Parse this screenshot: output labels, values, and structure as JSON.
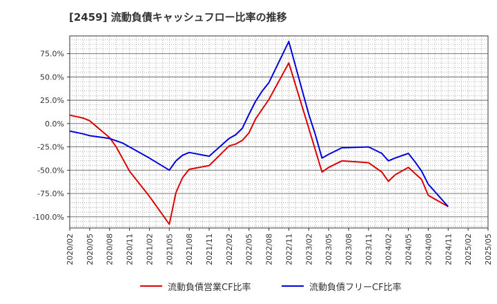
{
  "title": "[2459]  流動負債キャッシュフロー比率の推移",
  "colors": {
    "operating": "#dd0000",
    "free": "#0000dd",
    "grid": "#999999",
    "axis": "#333333"
  },
  "chart_data": {
    "type": "line",
    "title": "[2459]  流動負債キャッシュフロー比率の推移",
    "xlabel": "",
    "ylabel": "",
    "ylim": [
      -112,
      94
    ],
    "grid": true,
    "legend_position": "bottom",
    "y_ticks": [
      75,
      50,
      25,
      0,
      -25,
      -50,
      -75,
      -100
    ],
    "y_tick_labels": [
      "75.0%",
      "50.0%",
      "25.0%",
      "0.0%",
      "-25.0%",
      "-50.0%",
      "-75.0%",
      "-100.0%"
    ],
    "x_ticks": [
      "2020/02",
      "2020/05",
      "2020/08",
      "2020/11",
      "2021/02",
      "2021/05",
      "2021/08",
      "2021/11",
      "2022/02",
      "2022/05",
      "2022/08",
      "2022/11",
      "2023/02",
      "2023/05",
      "2023/08",
      "2023/11",
      "2024/02",
      "2024/05",
      "2024/08",
      "2024/11",
      "2025/02",
      "2025/05"
    ],
    "series": [
      {
        "name": "流動負債営業CF比率",
        "color": "#dd0000",
        "points": [
          [
            "2020/02",
            9
          ],
          [
            "2020/04",
            6
          ],
          [
            "2020/05",
            3
          ],
          [
            "2020/08",
            -15
          ],
          [
            "2020/09",
            -25
          ],
          [
            "2020/10",
            -38
          ],
          [
            "2020/11",
            -51
          ],
          [
            "2021/02",
            -78
          ],
          [
            "2021/05",
            -108
          ],
          [
            "2021/06",
            -74
          ],
          [
            "2021/07",
            -58
          ],
          [
            "2021/08",
            -49
          ],
          [
            "2021/11",
            -45
          ],
          [
            "2022/02",
            -24
          ],
          [
            "2022/03",
            -22
          ],
          [
            "2022/04",
            -18
          ],
          [
            "2022/05",
            -10
          ],
          [
            "2022/06",
            5
          ],
          [
            "2022/08",
            26
          ],
          [
            "2022/11",
            65
          ],
          [
            "2023/02",
            -5
          ],
          [
            "2023/04",
            -52
          ],
          [
            "2023/05",
            -47
          ],
          [
            "2023/07",
            -40
          ],
          [
            "2023/11",
            -42
          ],
          [
            "2024/01",
            -52
          ],
          [
            "2024/02",
            -62
          ],
          [
            "2024/03",
            -55
          ],
          [
            "2024/05",
            -47
          ],
          [
            "2024/07",
            -60
          ],
          [
            "2024/08",
            -77
          ],
          [
            "2024/11",
            -89
          ]
        ]
      },
      {
        "name": "流動負債フリーCF比率",
        "color": "#0000dd",
        "points": [
          [
            "2020/02",
            -8
          ],
          [
            "2020/04",
            -11
          ],
          [
            "2020/05",
            -13
          ],
          [
            "2020/08",
            -16
          ],
          [
            "2020/10",
            -21
          ],
          [
            "2020/11",
            -25
          ],
          [
            "2021/02",
            -37
          ],
          [
            "2021/05",
            -50
          ],
          [
            "2021/06",
            -40
          ],
          [
            "2021/07",
            -34
          ],
          [
            "2021/08",
            -31
          ],
          [
            "2021/11",
            -35
          ],
          [
            "2022/02",
            -16
          ],
          [
            "2022/03",
            -12
          ],
          [
            "2022/04",
            -5
          ],
          [
            "2022/05",
            10
          ],
          [
            "2022/06",
            24
          ],
          [
            "2022/07",
            35
          ],
          [
            "2022/08",
            44
          ],
          [
            "2022/11",
            88
          ],
          [
            "2023/02",
            10
          ],
          [
            "2023/03",
            -12
          ],
          [
            "2023/04",
            -37
          ],
          [
            "2023/05",
            -33
          ],
          [
            "2023/07",
            -26
          ],
          [
            "2023/11",
            -25
          ],
          [
            "2024/01",
            -32
          ],
          [
            "2024/02",
            -40
          ],
          [
            "2024/03",
            -37
          ],
          [
            "2024/05",
            -32
          ],
          [
            "2024/06",
            -41
          ],
          [
            "2024/07",
            -51
          ],
          [
            "2024/08",
            -65
          ],
          [
            "2024/11",
            -89
          ]
        ]
      }
    ]
  }
}
